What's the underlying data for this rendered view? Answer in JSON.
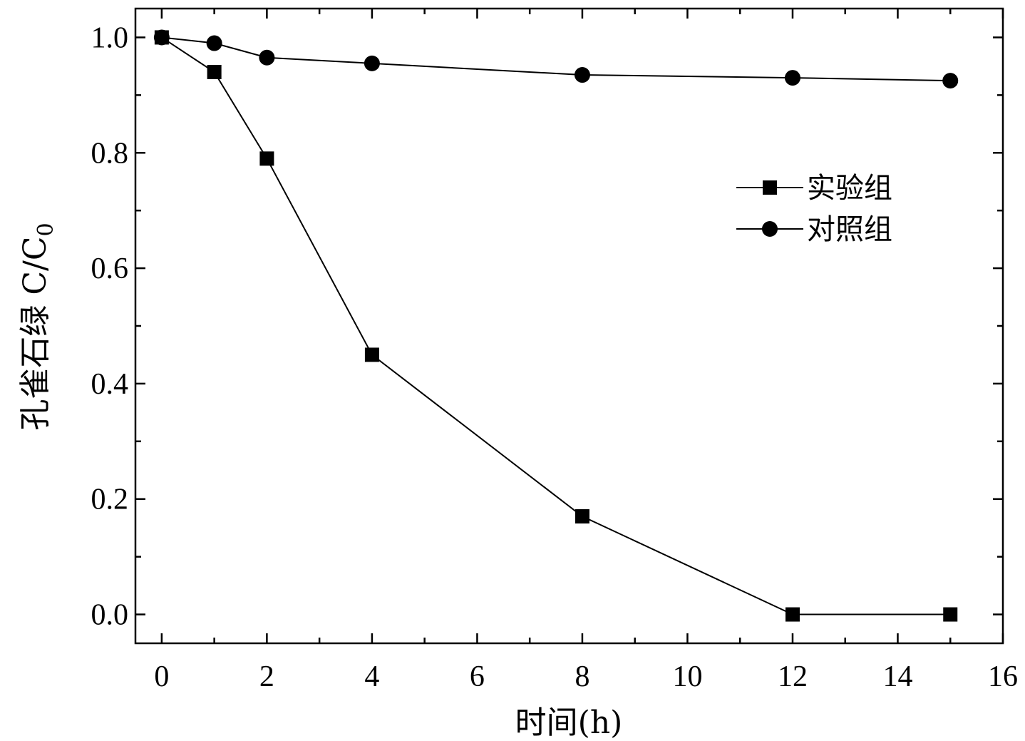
{
  "chart_data": {
    "type": "line",
    "xlabel": "时间(h)",
    "ylabel_main": "孔雀石绿 C/C",
    "ylabel_sub": "0",
    "xlim": [
      -0.5,
      16
    ],
    "ylim": [
      -0.05,
      1.05
    ],
    "xticks": [
      0,
      2,
      4,
      6,
      8,
      10,
      12,
      14,
      16
    ],
    "yticks": [
      0.0,
      0.2,
      0.4,
      0.6,
      0.8,
      1.0
    ],
    "ytick_labels": [
      "0.0",
      "0.2",
      "0.4",
      "0.6",
      "0.8",
      "1.0"
    ],
    "grid": false,
    "legend_position": "upper-right",
    "series": [
      {
        "name": "实验组",
        "marker": "square",
        "color": "#000000",
        "x": [
          0,
          1,
          2,
          4,
          8,
          12,
          15
        ],
        "y": [
          1.0,
          0.94,
          0.79,
          0.45,
          0.17,
          0.0,
          0.0
        ]
      },
      {
        "name": "对照组",
        "marker": "circle",
        "color": "#000000",
        "x": [
          0,
          1,
          2,
          4,
          8,
          12,
          15
        ],
        "y": [
          1.0,
          0.99,
          0.965,
          0.955,
          0.935,
          0.93,
          0.925
        ]
      }
    ]
  }
}
